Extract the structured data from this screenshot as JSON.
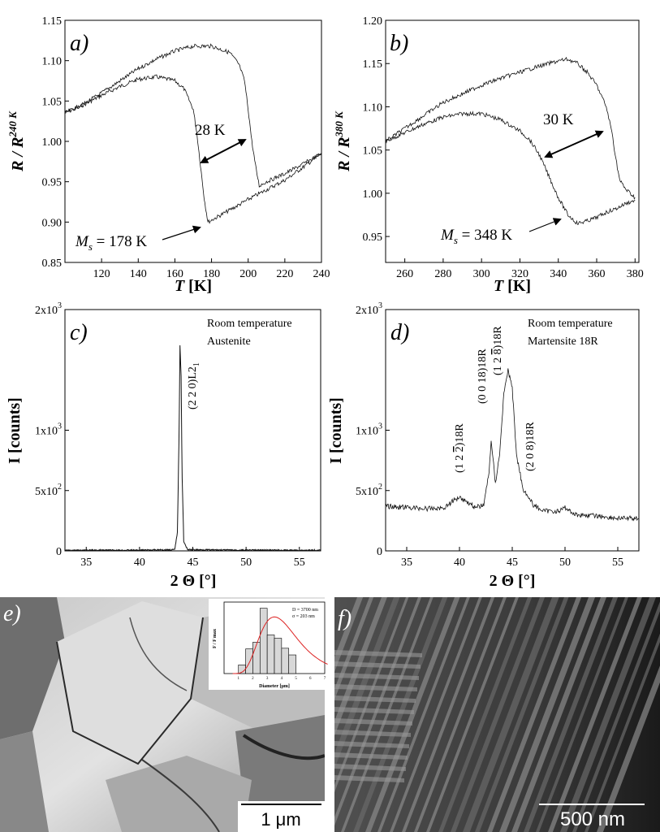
{
  "panels": {
    "a": {
      "label": "a)",
      "ylabel_main": "R / R",
      "ylabel_sup": "240 K",
      "xlabel_main": "T",
      "xlabel_unit": " [K]",
      "hysteresis": "28 K",
      "ms_sym": "M",
      "ms_sub": "s",
      "ms_val": " = 178 K"
    },
    "b": {
      "label": "b)",
      "ylabel_main": "R / R",
      "ylabel_sup": "380 K",
      "xlabel_main": "T",
      "xlabel_unit": " [K]",
      "hysteresis": "30 K",
      "ms_sym": "M",
      "ms_sub": "s",
      "ms_val": " = 348 K"
    },
    "c": {
      "label": "c)",
      "ylabel": "I [counts]",
      "xlabel": "2 Θ [°]",
      "note1": "Room temperature",
      "note2": "Austenite"
    },
    "d": {
      "label": "d)",
      "ylabel": "I [counts]",
      "xlabel": "2 Θ [°]",
      "note1": "Room temperature",
      "note2": "Martensite 18R"
    },
    "e": {
      "label": "e)",
      "scalebar": "1 μm",
      "inset": {
        "ylabel": "F / F max",
        "xlabel": "Diameter [μm]",
        "stat1": "D = 3700 nm",
        "stat2": "σ = 203 nm"
      }
    },
    "f": {
      "label": "f)",
      "scalebar": "500 nm"
    }
  },
  "chart_data": [
    {
      "id": "a",
      "type": "line",
      "xlabel": "T [K]",
      "ylabel": "R / R240 K",
      "xlim": [
        100,
        240
      ],
      "ylim": [
        0.85,
        1.15
      ],
      "xticks": [
        120,
        140,
        160,
        180,
        200,
        220,
        240
      ],
      "yticks": [
        "0.85",
        "0.90",
        "0.95",
        "1.00",
        "1.05",
        "1.10",
        "1.15"
      ],
      "series": [
        {
          "x": [
            100,
            110,
            120,
            130,
            140,
            150,
            160,
            165,
            170,
            172,
            174,
            176,
            178,
            182,
            190,
            200,
            210,
            220,
            230,
            240
          ],
          "y": [
            1.035,
            1.045,
            1.057,
            1.068,
            1.077,
            1.08,
            1.075,
            1.065,
            1.04,
            1.01,
            0.97,
            0.93,
            0.9,
            0.905,
            0.915,
            0.928,
            0.94,
            0.952,
            0.968,
            0.985
          ]
        },
        {
          "x": [
            100,
            110,
            120,
            130,
            140,
            150,
            160,
            170,
            180,
            190,
            195,
            198,
            200,
            202,
            204,
            206,
            210,
            220,
            230,
            240
          ],
          "y": [
            1.035,
            1.046,
            1.06,
            1.075,
            1.09,
            1.102,
            1.112,
            1.118,
            1.118,
            1.11,
            1.095,
            1.075,
            1.04,
            1.0,
            0.97,
            0.945,
            0.95,
            0.96,
            0.972,
            0.985
          ]
        }
      ],
      "annotations": [
        "28 K",
        "Ms = 178 K"
      ]
    },
    {
      "id": "b",
      "type": "line",
      "xlabel": "T [K]",
      "ylabel": "R / R380 K",
      "xlim": [
        250,
        382
      ],
      "ylim": [
        0.92,
        1.2
      ],
      "xticks": [
        260,
        280,
        300,
        320,
        340,
        360,
        380
      ],
      "yticks": [
        "0.95",
        "1.00",
        "1.05",
        "1.10",
        "1.15",
        "1.20"
      ],
      "series": [
        {
          "x": [
            250,
            260,
            270,
            280,
            290,
            300,
            310,
            320,
            325,
            330,
            335,
            340,
            345,
            350,
            355,
            360,
            365,
            370,
            375,
            380
          ],
          "y": [
            1.06,
            1.07,
            1.08,
            1.088,
            1.092,
            1.092,
            1.085,
            1.072,
            1.062,
            1.045,
            1.02,
            0.995,
            0.975,
            0.965,
            0.968,
            0.972,
            0.978,
            0.982,
            0.988,
            0.992
          ]
        },
        {
          "x": [
            250,
            260,
            270,
            280,
            290,
            300,
            310,
            320,
            330,
            340,
            345,
            350,
            355,
            360,
            365,
            368,
            370,
            372,
            375,
            380
          ],
          "y": [
            1.06,
            1.075,
            1.09,
            1.105,
            1.115,
            1.125,
            1.133,
            1.14,
            1.147,
            1.153,
            1.155,
            1.15,
            1.14,
            1.125,
            1.1,
            1.07,
            1.04,
            1.015,
            1.005,
            0.995
          ]
        }
      ],
      "annotations": [
        "30 K",
        "Ms = 348 K"
      ]
    },
    {
      "id": "c",
      "type": "line",
      "xlabel": "2 Θ [°]",
      "ylabel": "I [counts]",
      "xlim": [
        33,
        57
      ],
      "ylim": [
        0,
        2000
      ],
      "xticks": [
        35,
        40,
        45,
        50,
        55
      ],
      "yticks": [
        "0",
        "5x10^2",
        "1x10^3",
        "2x10^3"
      ],
      "series": [
        {
          "x": [
            33,
            40,
            43.3,
            43.55,
            43.7,
            43.8,
            43.9,
            44.0,
            44.15,
            44.5,
            50,
            57
          ],
          "y": [
            5,
            6,
            10,
            150,
            900,
            1700,
            1450,
            600,
            80,
            10,
            6,
            5
          ]
        }
      ],
      "annotations": [
        "(2 2 0)L21"
      ]
    },
    {
      "id": "d",
      "type": "line",
      "xlabel": "2 Θ [°]",
      "ylabel": "I [counts]",
      "xlim": [
        33,
        57
      ],
      "ylim": [
        0,
        2000
      ],
      "xticks": [
        35,
        40,
        45,
        50,
        55
      ],
      "yticks": [
        "0",
        "5x10^2",
        "1x10^3",
        "2x10^3"
      ],
      "series": [
        {
          "x": [
            33,
            35,
            37,
            38.5,
            39.5,
            40,
            40.5,
            41.5,
            42.3,
            42.8,
            43.0,
            43.4,
            43.8,
            44.2,
            44.6,
            45.0,
            45.4,
            46,
            47,
            48,
            49.5,
            50,
            51,
            53,
            55,
            57
          ],
          "y": [
            370,
            360,
            350,
            355,
            420,
            450,
            420,
            360,
            380,
            650,
            920,
            560,
            800,
            1300,
            1500,
            1350,
            800,
            520,
            380,
            330,
            330,
            360,
            300,
            290,
            270,
            270
          ]
        }
      ],
      "annotations": [
        "(1 2 2)18R",
        "(0 0 18)18R",
        "(1 2 8)18R",
        "(2 0 8)18R"
      ]
    },
    {
      "id": "e-inset",
      "type": "bar",
      "xlabel": "Diameter [μm]",
      "ylabel": "F / Fmax",
      "categories": [
        "1",
        "2",
        "3",
        "4",
        "5",
        "6",
        "7"
      ],
      "x": [
        1.25,
        1.75,
        2.25,
        2.75,
        3.25,
        3.75,
        4.25,
        4.75,
        5.25,
        5.75,
        6.25
      ],
      "values": [
        0.13,
        0.37,
        0.47,
        0.98,
        0.58,
        0.53,
        0.38,
        0.28,
        0.0,
        0.0,
        0.0
      ],
      "fit": "lognormal"
    }
  ]
}
